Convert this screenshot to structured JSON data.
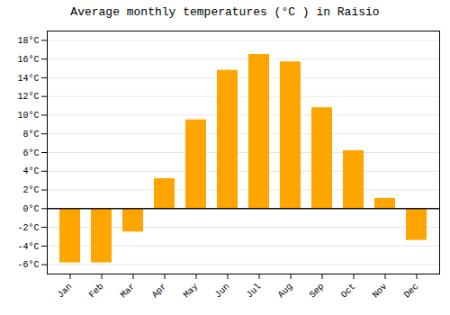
{
  "chart_data": {
    "type": "bar",
    "title": "Average monthly temperatures (°C ) in Raisio",
    "categories": [
      "Jan",
      "Feb",
      "Mar",
      "Apr",
      "May",
      "Jun",
      "Jul",
      "Aug",
      "Sep",
      "Oct",
      "Nov",
      "Dec"
    ],
    "values": [
      -5.8,
      -5.8,
      -2.5,
      3.2,
      9.5,
      14.8,
      16.5,
      15.7,
      10.8,
      6.2,
      1.1,
      -3.4
    ],
    "color": "#FFA500",
    "ylim": [
      -7,
      19
    ],
    "yticks": [
      {
        "value": -6,
        "label": "-6°C"
      },
      {
        "value": -4,
        "label": "-4°C"
      },
      {
        "value": -2,
        "label": "-2°C"
      },
      {
        "value": 0,
        "label": "0°C"
      },
      {
        "value": 2,
        "label": "2°C"
      },
      {
        "value": 4,
        "label": "4°C"
      },
      {
        "value": 6,
        "label": "6°C"
      },
      {
        "value": 8,
        "label": "8°C"
      },
      {
        "value": 10,
        "label": "10°C"
      },
      {
        "value": 12,
        "label": "12°C"
      },
      {
        "value": 14,
        "label": "14°C"
      },
      {
        "value": 16,
        "label": "16°C"
      },
      {
        "value": 18,
        "label": "18°C"
      }
    ],
    "grid": true
  }
}
